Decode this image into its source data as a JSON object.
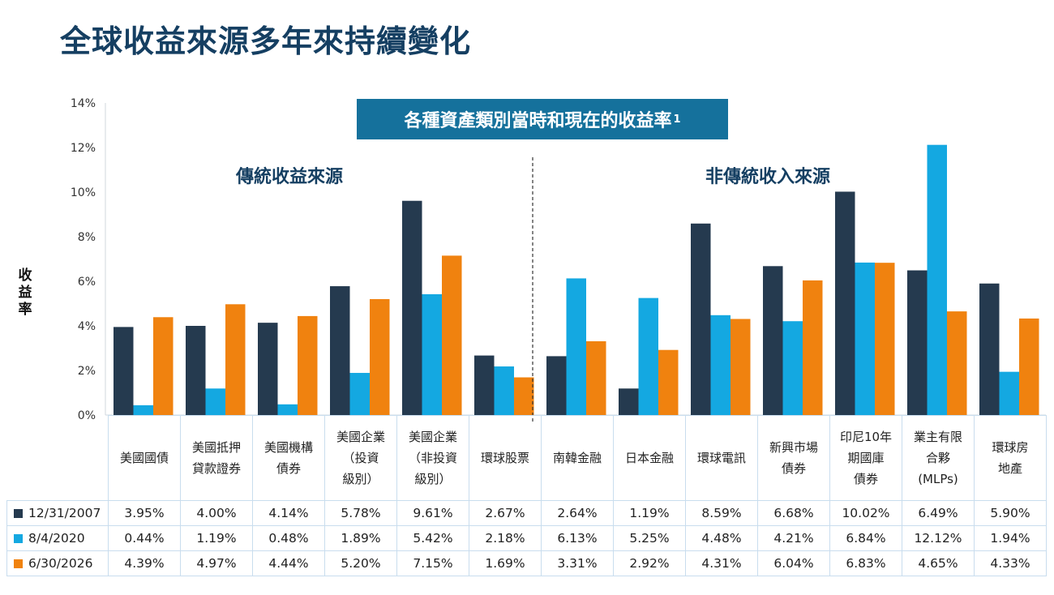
{
  "title": "全球收益來源多年來持續變化",
  "colors": {
    "s2007": "#253a4f",
    "s2020": "#14a8e1",
    "s2026": "#f0820f",
    "title": "#153f62",
    "box": "#15719c"
  },
  "chart_data": {
    "type": "bar",
    "title": "各種資產類別當時和現在的收益率",
    "title_superscript": "1",
    "ylabel": "收益率",
    "ylim": [
      0,
      14
    ],
    "yticks": [
      "0%",
      "2%",
      "4%",
      "6%",
      "8%",
      "10%",
      "12%",
      "14%"
    ],
    "grid": false,
    "legend": "table-left",
    "groups": [
      {
        "label": "傳統收益來源",
        "categories": [
          0,
          1,
          2,
          3,
          4,
          5
        ]
      },
      {
        "label": "非傳統收入來源",
        "categories": [
          6,
          7,
          8,
          9,
          10,
          11,
          12
        ]
      }
    ],
    "categories": [
      [
        "美國國債"
      ],
      [
        "美國抵押",
        "貸款證券"
      ],
      [
        "美國機構",
        "債券"
      ],
      [
        "美國企業",
        "（投資",
        "級別）"
      ],
      [
        "美國企業",
        "（非投資",
        "級別）"
      ],
      [
        "環球股票"
      ],
      [
        "南韓金融"
      ],
      [
        "日本金融"
      ],
      [
        "環球電訊"
      ],
      [
        "新興市場",
        "債券"
      ],
      [
        "印尼10年",
        "期國庫",
        "債券"
      ],
      [
        "業主有限",
        "合夥",
        "(MLPs)"
      ],
      [
        "環球房",
        "地產"
      ]
    ],
    "series": [
      {
        "name": "12/31/2007",
        "color": "#253a4f",
        "values": [
          3.95,
          4.0,
          4.14,
          5.78,
          9.61,
          2.67,
          2.64,
          1.19,
          8.59,
          6.68,
          10.02,
          6.49,
          5.9
        ],
        "labels": [
          "3.95%",
          "4.00%",
          "4.14%",
          "5.78%",
          "9.61%",
          "2.67%",
          "2.64%",
          "1.19%",
          "8.59%",
          "6.68%",
          "10.02%",
          "6.49%",
          "5.90%"
        ]
      },
      {
        "name": "8/4/2020",
        "color": "#14a8e1",
        "values": [
          0.44,
          1.19,
          0.48,
          1.89,
          5.42,
          2.18,
          6.13,
          5.25,
          4.48,
          4.21,
          6.84,
          12.12,
          1.94
        ],
        "labels": [
          "0.44%",
          "1.19%",
          "0.48%",
          "1.89%",
          "5.42%",
          "2.18%",
          "6.13%",
          "5.25%",
          "4.48%",
          "4.21%",
          "6.84%",
          "12.12%",
          "1.94%"
        ]
      },
      {
        "name": "6/30/2026",
        "color": "#f0820f",
        "values": [
          4.39,
          4.97,
          4.44,
          5.2,
          7.15,
          1.69,
          3.31,
          2.92,
          4.31,
          6.04,
          6.83,
          4.65,
          4.33
        ],
        "labels": [
          "4.39%",
          "4.97%",
          "4.44%",
          "5.20%",
          "7.15%",
          "1.69%",
          "3.31%",
          "2.92%",
          "4.31%",
          "6.04%",
          "6.83%",
          "4.65%",
          "4.33%"
        ]
      }
    ]
  }
}
